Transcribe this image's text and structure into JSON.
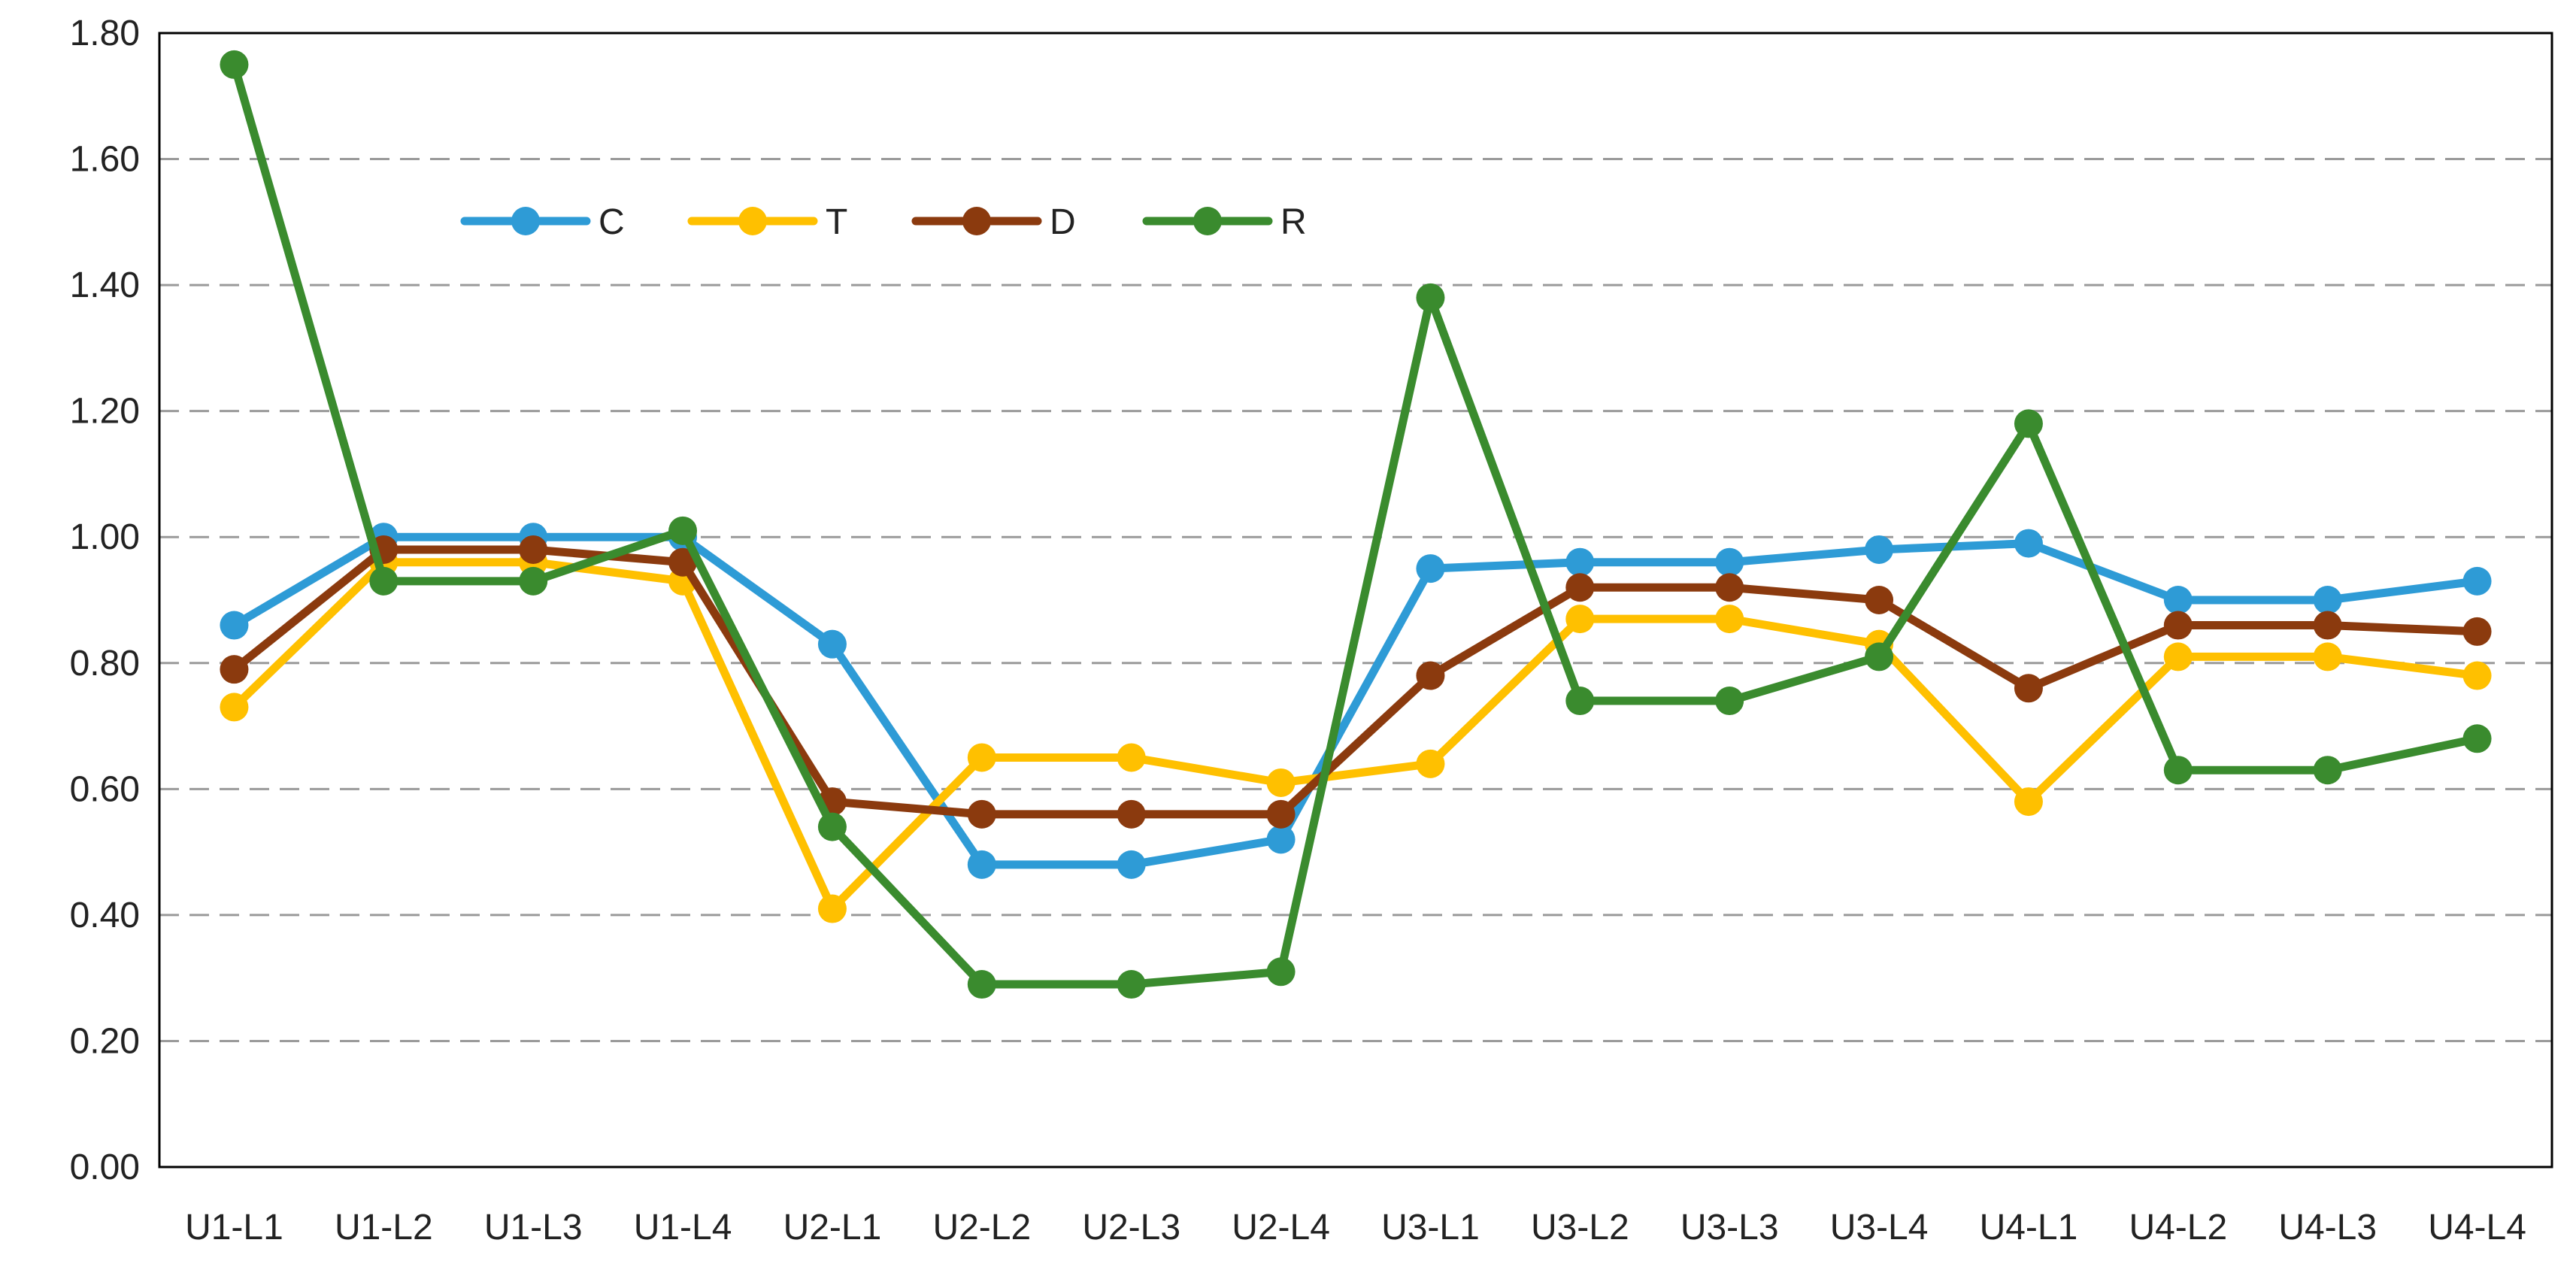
{
  "chart_data": {
    "type": "line",
    "categories": [
      "U1-L1",
      "U1-L2",
      "U1-L3",
      "U1-L4",
      "U2-L1",
      "U2-L2",
      "U2-L3",
      "U2-L4",
      "U3-L1",
      "U3-L2",
      "U3-L3",
      "U3-L4",
      "U4-L1",
      "U4-L2",
      "U4-L3",
      "U4-L4"
    ],
    "series": [
      {
        "name": "C",
        "color": "#2E9BD6",
        "values": [
          0.86,
          1.0,
          1.0,
          1.0,
          0.83,
          0.48,
          0.48,
          0.52,
          0.95,
          0.96,
          0.96,
          0.98,
          0.99,
          0.9,
          0.9,
          0.93
        ]
      },
      {
        "name": "T",
        "color": "#FFC000",
        "values": [
          0.73,
          0.96,
          0.96,
          0.93,
          0.41,
          0.65,
          0.65,
          0.61,
          0.64,
          0.87,
          0.87,
          0.83,
          0.58,
          0.81,
          0.81,
          0.78
        ]
      },
      {
        "name": "D",
        "color": "#8B3A0E",
        "values": [
          0.79,
          0.98,
          0.98,
          0.96,
          0.58,
          0.56,
          0.56,
          0.56,
          0.78,
          0.92,
          0.92,
          0.9,
          0.76,
          0.86,
          0.86,
          0.85
        ]
      },
      {
        "name": "R",
        "color": "#3A8B2E",
        "values": [
          1.75,
          0.93,
          0.93,
          1.01,
          0.54,
          0.29,
          0.29,
          0.31,
          1.38,
          0.74,
          0.74,
          0.81,
          1.18,
          0.63,
          0.63,
          0.68
        ]
      }
    ],
    "ylim": [
      0,
      1.8
    ],
    "yticks": [
      "0.00",
      "0.20",
      "0.40",
      "0.60",
      "0.80",
      "1.00",
      "1.20",
      "1.40",
      "1.60",
      "1.80"
    ],
    "grid": "horizontal-dashed",
    "legend_position": "top-left"
  }
}
